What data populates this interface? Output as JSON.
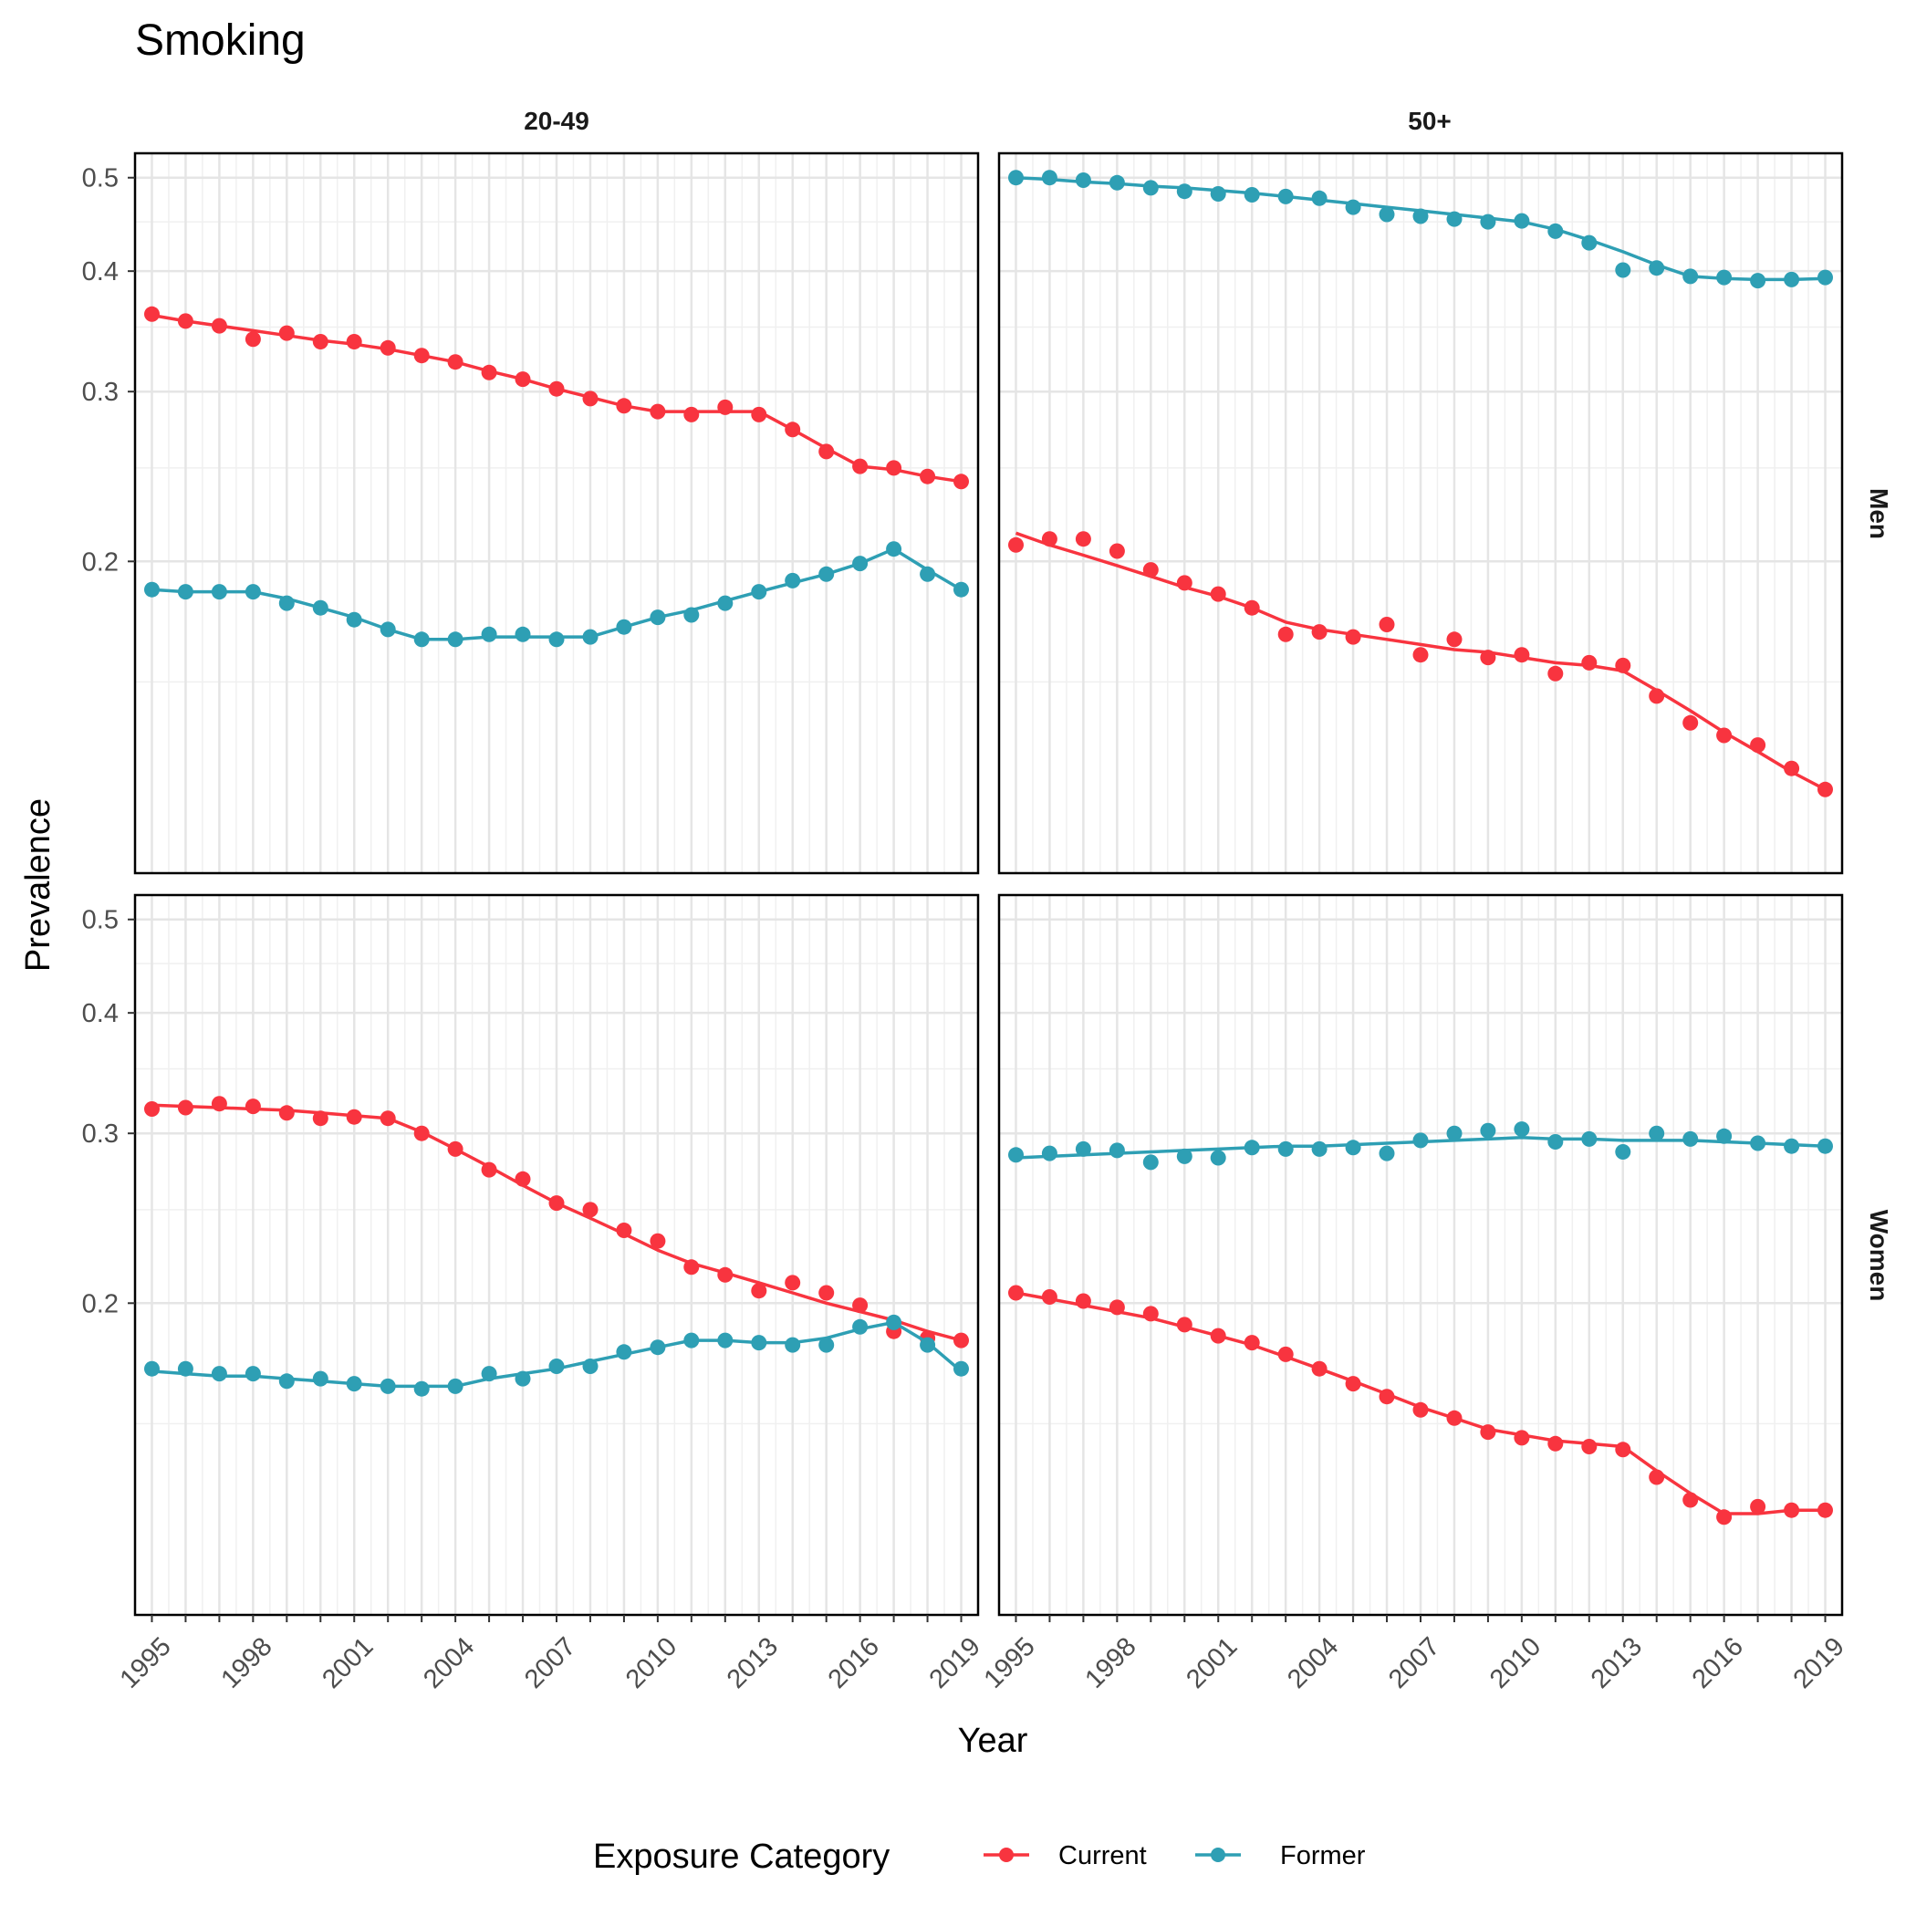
{
  "chart_data": {
    "type": "line",
    "title": "Smoking",
    "xlabel": "Year",
    "ylabel": "Prevalence",
    "y_scale": "log",
    "ylim": [
      0.095,
      0.53
    ],
    "xlim": [
      1994.5,
      2019.5
    ],
    "x_ticks": [
      1995,
      1998,
      2001,
      2004,
      2007,
      2010,
      2013,
      2016,
      2019
    ],
    "y_ticks": [
      0.2,
      0.3,
      0.4,
      0.5
    ],
    "grid": true,
    "column_labels": [
      "20-49",
      "50+"
    ],
    "row_labels": [
      "Men",
      "Women"
    ],
    "legend": {
      "title": "Exposure Category",
      "position": "bottom",
      "entries": [
        {
          "name": "Current",
          "color": "#f8343f"
        },
        {
          "name": "Former",
          "color": "#2e9fb4"
        }
      ]
    },
    "x": [
      1995,
      1996,
      1997,
      1998,
      1999,
      2000,
      2001,
      2002,
      2003,
      2004,
      2005,
      2006,
      2007,
      2008,
      2009,
      2010,
      2011,
      2012,
      2013,
      2014,
      2015,
      2016,
      2017,
      2018,
      2019
    ],
    "panels": [
      {
        "column": "20-49",
        "row": "Men",
        "series": [
          {
            "name": "Current",
            "points": [
              0.361,
              0.355,
              0.351,
              0.34,
              0.345,
              0.338,
              0.338,
              0.333,
              0.327,
              0.322,
              0.314,
              0.309,
              0.302,
              0.295,
              0.29,
              0.286,
              0.284,
              0.289,
              0.284,
              0.274,
              0.26,
              0.251,
              0.25,
              0.245,
              0.242
            ],
            "fit": [
              0.36,
              0.355,
              0.351,
              0.347,
              0.343,
              0.339,
              0.336,
              0.332,
              0.327,
              0.322,
              0.315,
              0.309,
              0.302,
              0.296,
              0.29,
              0.286,
              0.286,
              0.286,
              0.286,
              0.274,
              0.262,
              0.251,
              0.249,
              0.245,
              0.242
            ]
          },
          {
            "name": "Former",
            "points": [
              0.187,
              0.186,
              0.186,
              0.186,
              0.181,
              0.179,
              0.174,
              0.17,
              0.166,
              0.166,
              0.168,
              0.168,
              0.166,
              0.167,
              0.171,
              0.175,
              0.176,
              0.181,
              0.186,
              0.191,
              0.194,
              0.199,
              0.206,
              0.194,
              0.187
            ],
            "fit": [
              0.187,
              0.186,
              0.186,
              0.186,
              0.183,
              0.179,
              0.175,
              0.17,
              0.166,
              0.166,
              0.167,
              0.167,
              0.167,
              0.167,
              0.171,
              0.175,
              0.178,
              0.182,
              0.186,
              0.19,
              0.194,
              0.199,
              0.206,
              0.196,
              0.187
            ]
          }
        ]
      },
      {
        "column": "50+",
        "row": "Men",
        "series": [
          {
            "name": "Current",
            "points": [
              0.208,
              0.211,
              0.211,
              0.205,
              0.196,
              0.19,
              0.185,
              0.179,
              0.168,
              0.169,
              0.167,
              0.172,
              0.16,
              0.166,
              0.159,
              0.16,
              0.153,
              0.157,
              0.156,
              0.145,
              0.136,
              0.132,
              0.129,
              0.122,
              0.116
            ],
            "fit": [
              0.214,
              0.208,
              0.203,
              0.198,
              0.193,
              0.188,
              0.184,
              0.179,
              0.173,
              0.17,
              0.168,
              0.166,
              0.164,
              0.162,
              0.161,
              0.159,
              0.157,
              0.156,
              0.154,
              0.147,
              0.14,
              0.133,
              0.127,
              0.121,
              0.116
            ]
          },
          {
            "name": "Former",
            "points": [
              0.5,
              0.5,
              0.497,
              0.494,
              0.488,
              0.484,
              0.481,
              0.48,
              0.478,
              0.476,
              0.466,
              0.458,
              0.456,
              0.453,
              0.45,
              0.451,
              0.44,
              0.428,
              0.401,
              0.403,
              0.395,
              0.394,
              0.391,
              0.392,
              0.394
            ],
            "fit": [
              0.5,
              0.498,
              0.495,
              0.493,
              0.49,
              0.488,
              0.485,
              0.482,
              0.478,
              0.474,
              0.47,
              0.466,
              0.462,
              0.458,
              0.454,
              0.45,
              0.442,
              0.431,
              0.419,
              0.406,
              0.395,
              0.393,
              0.392,
              0.392,
              0.393
            ]
          }
        ]
      },
      {
        "column": "20-49",
        "row": "Women",
        "series": [
          {
            "name": "Current",
            "points": [
              0.318,
              0.319,
              0.322,
              0.32,
              0.315,
              0.311,
              0.312,
              0.311,
              0.3,
              0.289,
              0.275,
              0.269,
              0.254,
              0.25,
              0.238,
              0.232,
              0.218,
              0.214,
              0.206,
              0.21,
              0.205,
              0.199,
              0.187,
              0.184,
              0.183
            ],
            "fit": [
              0.321,
              0.32,
              0.319,
              0.318,
              0.317,
              0.315,
              0.313,
              0.311,
              0.301,
              0.289,
              0.277,
              0.265,
              0.254,
              0.245,
              0.236,
              0.227,
              0.22,
              0.215,
              0.21,
              0.205,
              0.2,
              0.196,
              0.192,
              0.187,
              0.183
            ]
          },
          {
            "name": "Former",
            "points": [
              0.171,
              0.171,
              0.169,
              0.169,
              0.166,
              0.167,
              0.165,
              0.164,
              0.163,
              0.164,
              0.169,
              0.167,
              0.172,
              0.172,
              0.178,
              0.18,
              0.183,
              0.183,
              0.182,
              0.181,
              0.181,
              0.189,
              0.191,
              0.181,
              0.171
            ],
            "fit": [
              0.17,
              0.169,
              0.168,
              0.168,
              0.167,
              0.166,
              0.165,
              0.164,
              0.164,
              0.164,
              0.167,
              0.169,
              0.171,
              0.174,
              0.177,
              0.18,
              0.183,
              0.183,
              0.182,
              0.182,
              0.184,
              0.188,
              0.191,
              0.182,
              0.17
            ]
          }
        ]
      },
      {
        "column": "50+",
        "row": "Women",
        "series": [
          {
            "name": "Current",
            "points": [
              0.205,
              0.203,
              0.201,
              0.198,
              0.195,
              0.19,
              0.185,
              0.182,
              0.177,
              0.171,
              0.165,
              0.16,
              0.155,
              0.152,
              0.147,
              0.145,
              0.143,
              0.142,
              0.141,
              0.132,
              0.125,
              0.12,
              0.123,
              0.122,
              0.122
            ],
            "fit": [
              0.205,
              0.202,
              0.199,
              0.196,
              0.193,
              0.189,
              0.185,
              0.181,
              0.176,
              0.171,
              0.166,
              0.161,
              0.156,
              0.152,
              0.148,
              0.146,
              0.144,
              0.143,
              0.142,
              0.134,
              0.127,
              0.121,
              0.121,
              0.122,
              0.122
            ]
          },
          {
            "name": "Former",
            "points": [
              0.285,
              0.286,
              0.289,
              0.288,
              0.28,
              0.284,
              0.283,
              0.29,
              0.289,
              0.289,
              0.29,
              0.286,
              0.295,
              0.3,
              0.302,
              0.303,
              0.294,
              0.296,
              0.287,
              0.3,
              0.296,
              0.298,
              0.293,
              0.291,
              0.291
            ],
            "fit": [
              0.283,
              0.284,
              0.285,
              0.286,
              0.287,
              0.288,
              0.289,
              0.29,
              0.291,
              0.291,
              0.292,
              0.293,
              0.294,
              0.295,
              0.296,
              0.297,
              0.296,
              0.296,
              0.295,
              0.295,
              0.295,
              0.294,
              0.293,
              0.292,
              0.291
            ]
          }
        ]
      }
    ]
  }
}
